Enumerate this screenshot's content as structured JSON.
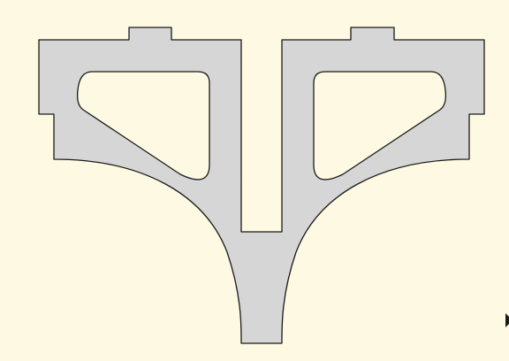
{
  "colors": {
    "background": "#fef9e2",
    "part_fill": "#d6d6d6",
    "outline": "#1a1a1a",
    "marker": "#1a1a1a"
  },
  "icons": {
    "edge_marker": "triangle-right-icon"
  }
}
